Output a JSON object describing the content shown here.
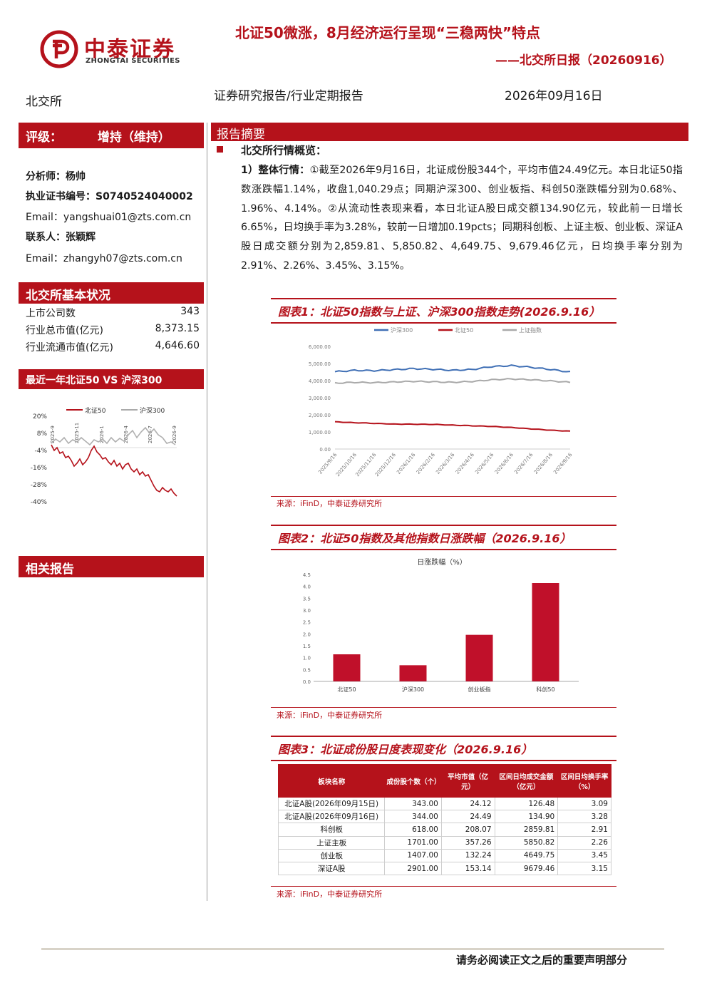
{
  "header": {
    "logo_cn": "中泰证券",
    "logo_en": "ZHONGTAI SECURITIES",
    "title": "北证50微涨，8月经济运行呈现“三稳两快”特点",
    "subtitle": "——北交所日报（20260916）",
    "market": "北交所",
    "report_type": "证券研究报告/行业定期报告",
    "date": "2026年09月16日"
  },
  "sidebar": {
    "rating_label": "评级：",
    "rating_value": "增持（维持）",
    "analyst": "分析师：杨帅",
    "cert": "执业证书编号：S0740524040002",
    "analyst_email": "Email：yangshuai01@zts.com.cn",
    "contact": "联系人：张颖辉",
    "contact_email": "Email：zhangyh07@zts.com.cn",
    "basic_title": "北交所基本状况",
    "basic": [
      {
        "label": "上市公司数",
        "value": "343"
      },
      {
        "label": "行业总市值(亿元)",
        "value": "8,373.15"
      },
      {
        "label": "行业流通市值(亿元)",
        "value": "4,646.60"
      }
    ],
    "perf_title": "最近一年北证50 VS 沪深300",
    "perf_chart": {
      "legend": [
        "北证50",
        "沪深300"
      ],
      "yticks": [
        "20%",
        "8%",
        "-4%",
        "-16%",
        "-28%",
        "-40%"
      ],
      "xticks": [
        "2025-9",
        "2025-11",
        "2026-1",
        "2026-4",
        "2026-7",
        "2026-9"
      ]
    },
    "related_title": "相关报告"
  },
  "summary": {
    "bar_title": "报告摘要",
    "overview_title": "北交所行情概览：",
    "p_head": "1）整体行情：",
    "p_body": "①截至2026年9月16日，北证成份股344个，平均市值24.49亿元。本日北证50指数涨跌幅1.14%，收盘1,040.29点；同期沪深300、创业板指、科创50涨跌幅分别为0.68%、1.96%、4.14%。②从流动性表现来看，本日北证A股日成交额134.90亿元，较此前一日增长6.65%，日均换手率为3.28%，较前一日增加0.19pcts；同期科创板、上证主板、创业板、深证A股日成交额分别为2,859.81、5,850.82、4,649.75、9,679.46亿元，日均换手率分别为2.91%、2.26%、3.45%、3.15%。"
  },
  "fig1": {
    "title": "图表1：北证50指数与上证、沪深300指数走势(2026.9.16）",
    "source": "来源：iFinD，中泰证券研究所"
  },
  "fig2": {
    "title": "图表2：北证50指数及其他指数日涨跌幅（2026.9.16）",
    "source": "来源：iFinD，中泰证券研究所"
  },
  "fig3": {
    "title": "图表3：北证成份股日度表现变化（2026.9.16）",
    "source": "来源：iFinD，中泰证券研究所",
    "headers": [
      "板块名称",
      "成份股个数（个）",
      "平均市值（亿元）",
      "区间日均成交金额（亿元）",
      "区间日均换手率（%）"
    ],
    "rows": [
      [
        "北证A股(2026年09月15日)",
        "343.00",
        "24.12",
        "126.48",
        "3.09"
      ],
      [
        "北证A股(2026年09月16日)",
        "344.00",
        "24.49",
        "134.90",
        "3.28"
      ],
      [
        "科创板",
        "618.00",
        "208.07",
        "2859.81",
        "2.91"
      ],
      [
        "上证主板",
        "1701.00",
        "357.26",
        "5850.82",
        "2.26"
      ],
      [
        "创业板",
        "1407.00",
        "132.24",
        "4649.75",
        "3.45"
      ],
      [
        "深证A股",
        "2901.00",
        "153.14",
        "9679.46",
        "3.15"
      ]
    ]
  },
  "chart_data": [
    {
      "type": "line",
      "title": "",
      "series": [
        {
          "name": "沪深300",
          "color": "#3f6fb5",
          "x": [
            "2025/9/16",
            "2025/10/16",
            "2025/11/16",
            "2025/12/16",
            "2026/1/16",
            "2026/2/16",
            "2026/3/16",
            "2026/4/16",
            "2026/5/16",
            "2026/6/16",
            "2026/7/16",
            "2026/8/16",
            "2026/9/16"
          ],
          "values": [
            4520,
            4600,
            4580,
            4640,
            4700,
            4660,
            4600,
            4650,
            4820,
            4880,
            4780,
            4650,
            4500
          ]
        },
        {
          "name": "北证50",
          "color": "#b5121b",
          "x": [
            "2025/9/16",
            "2025/10/16",
            "2025/11/16",
            "2025/12/16",
            "2026/1/16",
            "2026/2/16",
            "2026/3/16",
            "2026/4/16",
            "2026/5/16",
            "2026/6/16",
            "2026/7/16",
            "2026/8/16",
            "2026/9/16"
          ],
          "values": [
            1590,
            1540,
            1500,
            1460,
            1450,
            1440,
            1400,
            1360,
            1320,
            1260,
            1180,
            1100,
            1040.29
          ]
        },
        {
          "name": "上证指数",
          "color": "#a9a9a9",
          "x": [
            "2025/9/16",
            "2025/10/16",
            "2025/11/16",
            "2025/12/16",
            "2026/1/16",
            "2026/2/16",
            "2026/3/16",
            "2026/4/16",
            "2026/5/16",
            "2026/6/16",
            "2026/7/16",
            "2026/8/16",
            "2026/9/16"
          ],
          "values": [
            3850,
            3900,
            3880,
            3920,
            3960,
            3930,
            3900,
            3950,
            4050,
            4100,
            4050,
            3980,
            3900
          ]
        }
      ],
      "yticks": [
        "6,000.00",
        "5,000.00",
        "4,000.00",
        "3,000.00",
        "2,000.00",
        "1,000.00",
        "0.00"
      ],
      "ylim": [
        0,
        6000
      ],
      "legend": "top"
    },
    {
      "type": "bar",
      "title": "日涨跌幅（%）",
      "categories": [
        "北证50",
        "沪深300",
        "创业板指",
        "科创50"
      ],
      "values": [
        1.14,
        0.68,
        1.96,
        4.14
      ],
      "yticks": [
        "4.5",
        "4.0",
        "3.5",
        "3.0",
        "2.5",
        "2.0",
        "1.5",
        "1.0",
        "0.5",
        "0.0"
      ],
      "ylim": [
        0,
        4.5
      ],
      "color": "#c0102a"
    }
  ],
  "footer": "请务必阅读正文之后的重要声明部分"
}
